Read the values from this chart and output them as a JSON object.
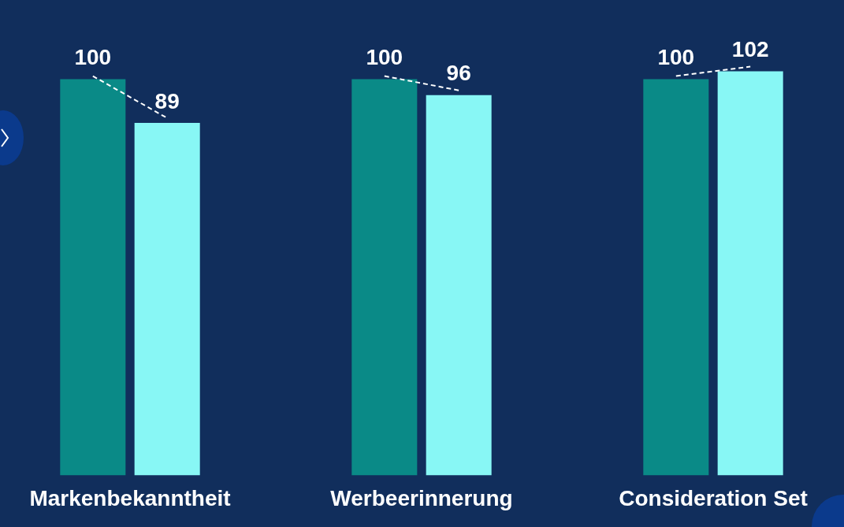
{
  "chart_data": {
    "type": "bar",
    "categories": [
      "Markenbekanntheit",
      "Werbeerinnerung",
      "Consideration Set"
    ],
    "series": [
      {
        "color": "#0a8a87",
        "values": [
          100,
          100,
          100
        ]
      },
      {
        "color": "#88f7f5",
        "values": [
          89,
          96,
          102
        ]
      }
    ],
    "data_labels": true,
    "grid": false,
    "legend": false,
    "tick_labels": "x"
  }
}
